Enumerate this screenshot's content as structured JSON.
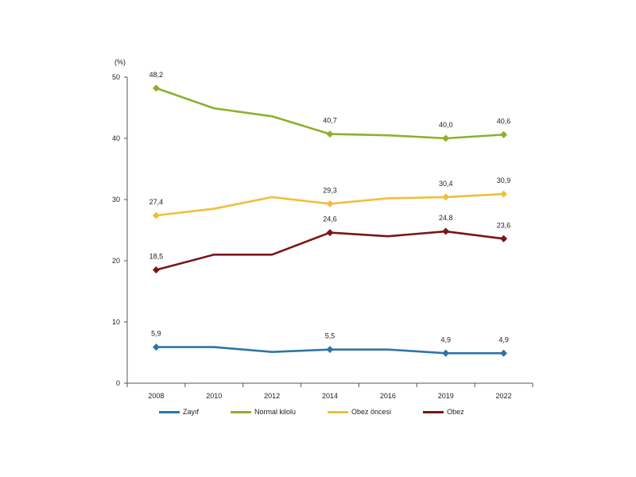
{
  "chart_data": {
    "type": "line",
    "unit_label": "(%)",
    "x": [
      "2008",
      "2010",
      "2012",
      "2014",
      "2016",
      "2019",
      "2022"
    ],
    "ylim": [
      0,
      50
    ],
    "yticks": [
      "0",
      "10",
      "20",
      "30",
      "40",
      "50"
    ],
    "grid": false,
    "legend_position": "bottom",
    "series": [
      {
        "name": "Zayıf",
        "color": "#2E75A6",
        "values": [
          5.9,
          5.9,
          5.1,
          5.5,
          5.5,
          4.9,
          4.9
        ],
        "labels": [
          "5,9",
          null,
          null,
          "5,5",
          null,
          "4,9",
          "4,9"
        ]
      },
      {
        "name": "Normal kilolu",
        "color": "#8DB02E",
        "values": [
          48.2,
          44.9,
          43.6,
          40.7,
          40.5,
          40.0,
          40.6
        ],
        "labels": [
          "48,2",
          null,
          null,
          "40,7",
          null,
          "40,0",
          "40,6"
        ]
      },
      {
        "name": "Obez öncesi",
        "color": "#F0BF3A",
        "values": [
          27.4,
          28.5,
          30.4,
          29.3,
          30.2,
          30.4,
          30.9
        ],
        "labels": [
          "27,4",
          null,
          null,
          "29,3",
          null,
          "30,4",
          "30,9"
        ]
      },
      {
        "name": "Obez",
        "color": "#7A1616",
        "values": [
          18.5,
          21.0,
          21.0,
          24.6,
          24.0,
          24.8,
          23.6
        ],
        "labels": [
          "18,5",
          null,
          null,
          "24,6",
          null,
          "24,8",
          "23,6"
        ]
      }
    ]
  }
}
